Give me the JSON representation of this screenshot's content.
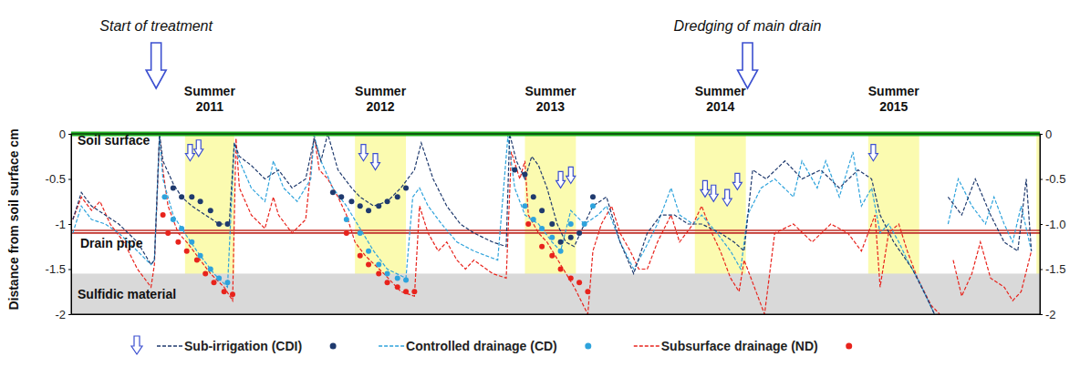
{
  "chart_data": {
    "type": "line",
    "y_label": "Distance from soil surface cm",
    "xlim": [
      2010.75,
      2016.45
    ],
    "ylim": [
      -2,
      0
    ],
    "yticks": [
      0,
      -0.5,
      -1,
      -1.5,
      -2
    ],
    "y2lim": [
      -2,
      0
    ],
    "y2ticks": [
      0,
      -0.5,
      {
        "value": -1,
        "label": "-1.0"
      },
      -1.5,
      -2
    ],
    "grid": false,
    "legend": "bottom",
    "series": [
      {
        "name": "Sub-irrigation (CDI)",
        "color": "#1f3a6e",
        "line_style": "dashed",
        "marker": "circle",
        "x": [
          2010.76,
          2010.81,
          2010.87,
          2010.95,
          2011.03,
          2011.14,
          2011.22,
          2011.24,
          2011.27,
          2011.29,
          2011.35,
          2011.4,
          2011.46,
          2011.54,
          2011.62,
          2011.68,
          2011.71,
          2011.74,
          2011.81,
          2011.89,
          2011.97,
          2012.05,
          2012.13,
          2012.18,
          2012.22,
          2012.26,
          2012.32,
          2012.4,
          2012.45,
          2012.53,
          2012.61,
          2012.69,
          2012.77,
          2012.81,
          2012.88,
          2012.96,
          2013.04,
          2013.12,
          2013.23,
          2013.31,
          2013.33,
          2013.37,
          2013.42,
          2013.46,
          2013.5,
          2013.55,
          2013.61,
          2013.66,
          2013.71,
          2013.77,
          2013.82,
          2013.9,
          2013.98,
          2014.06,
          2014.14,
          2014.22,
          2014.3,
          2014.38,
          2014.46,
          2014.57,
          2014.65,
          2014.71,
          2014.76,
          2014.84,
          2014.95,
          2015.05,
          2015.16,
          2015.27,
          2015.38,
          2015.46,
          2015.51,
          2015.59,
          2015.7,
          2015.78,
          2015.83,
          2015.88,
          2015.91,
          2015.99,
          2016.07,
          2016.16,
          2016.24,
          2016.32,
          2016.37,
          2016.4
        ],
        "values": [
          -0.95,
          -0.65,
          -0.8,
          -0.9,
          -1.0,
          -1.2,
          -1.45,
          -1.4,
          0,
          -0.3,
          -0.55,
          -0.7,
          -0.8,
          -0.9,
          -1.0,
          -1.0,
          -0.1,
          -0.25,
          -0.35,
          -0.5,
          -0.4,
          -0.6,
          -0.5,
          -0.05,
          -0.3,
          0,
          -0.4,
          -0.6,
          -0.7,
          -0.8,
          -0.75,
          -0.6,
          -0.4,
          -0.1,
          -0.5,
          -0.8,
          -1.0,
          -1.1,
          -1.2,
          -1.25,
          0,
          -0.3,
          -0.5,
          -0.25,
          -0.35,
          -0.6,
          -1.0,
          -1.2,
          -1.25,
          -1.0,
          -0.8,
          -0.7,
          -1.2,
          -1.55,
          -1.1,
          -0.9,
          -0.9,
          -1.0,
          -1.0,
          -1.1,
          -1.2,
          -1.3,
          -0.4,
          -0.5,
          -0.3,
          -0.5,
          -0.4,
          -0.6,
          -0.4,
          -0.5,
          -0.9,
          -1.2,
          -1.5,
          -1.8,
          -2.0,
          null,
          -0.7,
          -0.9,
          -0.5,
          -0.9,
          -1.2,
          -1.3,
          -0.5,
          -1.3
        ],
        "points": {
          "x": [
            2011.35,
            2011.4,
            2011.46,
            2011.51,
            2011.57,
            2011.62,
            2011.67,
            2012.29,
            2012.34,
            2012.4,
            2012.45,
            2012.5,
            2012.56,
            2012.61,
            2012.67,
            2012.72,
            2013.36,
            2013.42,
            2013.47,
            2013.52,
            2013.58,
            2013.63,
            2013.69,
            2013.74,
            2013.82
          ],
          "values": [
            -0.6,
            -0.7,
            -0.7,
            -0.75,
            -0.85,
            -1.0,
            -1.0,
            -0.65,
            -0.7,
            -0.75,
            -0.8,
            -0.85,
            -0.8,
            -0.75,
            -0.7,
            -0.6,
            -0.4,
            -0.45,
            -0.7,
            -0.85,
            -1.0,
            -1.2,
            -1.15,
            -1.1,
            -0.7
          ]
        }
      },
      {
        "name": "Controlled drainage (CD)",
        "color": "#2ea3dc",
        "line_style": "dashed",
        "marker": "circle",
        "x": [
          2010.76,
          2010.81,
          2010.87,
          2010.95,
          2011.03,
          2011.14,
          2011.22,
          2011.24,
          2011.27,
          2011.29,
          2011.35,
          2011.4,
          2011.49,
          2011.59,
          2011.67,
          2011.71,
          2011.74,
          2011.81,
          2011.89,
          2011.94,
          2012.0,
          2012.08,
          2012.16,
          2012.18,
          2012.22,
          2012.29,
          2012.37,
          2012.45,
          2012.53,
          2012.61,
          2012.72,
          2012.76,
          2012.8,
          2012.85,
          2012.93,
          2013.02,
          2013.12,
          2013.26,
          2013.32,
          2013.36,
          2013.42,
          2013.5,
          2013.58,
          2013.63,
          2013.69,
          2013.77,
          2013.85,
          2013.9,
          2013.98,
          2014.06,
          2014.12,
          2014.2,
          2014.28,
          2014.33,
          2014.41,
          2014.46,
          2014.55,
          2014.63,
          2014.69,
          2014.73,
          2014.81,
          2014.89,
          2015.0,
          2015.05,
          2015.14,
          2015.19,
          2015.27,
          2015.35,
          2015.4,
          2015.46,
          2015.51,
          2015.56,
          2015.62,
          2015.67,
          2015.73,
          2015.78,
          2015.83,
          2015.88,
          2015.91,
          2015.97,
          2016.05,
          2016.13,
          2016.18,
          2016.24,
          2016.29,
          2016.34,
          2016.4
        ],
        "values": [
          -1.1,
          -0.8,
          -0.95,
          -1.0,
          -1.1,
          -1.3,
          -1.45,
          -1.4,
          -0.02,
          -0.5,
          -0.9,
          -1.05,
          -1.3,
          -1.55,
          -1.7,
          -0.1,
          -0.3,
          -0.6,
          -0.75,
          -0.3,
          -0.6,
          -0.75,
          -0.5,
          -0.02,
          -0.3,
          -0.6,
          -0.8,
          -1.05,
          -1.3,
          -1.5,
          -1.6,
          -0.7,
          -0.6,
          -0.8,
          -1.0,
          -1.2,
          -1.3,
          -1.4,
          -0.02,
          -0.6,
          -0.9,
          -1.0,
          -1.2,
          -1.3,
          -0.85,
          -1.0,
          -0.9,
          -0.8,
          -1.2,
          -1.5,
          -1.3,
          -1.0,
          -0.6,
          -0.9,
          -1.0,
          -0.9,
          -1.1,
          -1.3,
          -1.5,
          -0.9,
          -0.6,
          -0.5,
          -0.7,
          -0.3,
          -0.6,
          -0.3,
          -0.7,
          -0.2,
          -0.8,
          -0.6,
          -1.1,
          -1.0,
          -1.2,
          -1.4,
          -1.6,
          -1.8,
          -2.0,
          null,
          -1.0,
          -0.5,
          -0.8,
          -1.0,
          -0.7,
          -1.0,
          -1.2,
          -0.8,
          -1.3
        ],
        "points": {
          "x": [
            2011.3,
            2011.35,
            2011.4,
            2011.46,
            2011.51,
            2011.57,
            2011.62,
            2011.67,
            2012.37,
            2012.45,
            2012.5,
            2012.56,
            2012.61,
            2012.67,
            2012.72,
            2013.42,
            2013.47,
            2013.52,
            2013.58,
            2013.63,
            2013.69,
            2013.77,
            2013.82
          ],
          "values": [
            -0.7,
            -0.95,
            -1.05,
            -1.2,
            -1.35,
            -1.5,
            -1.6,
            -1.65,
            -0.95,
            -1.1,
            -1.3,
            -1.45,
            -1.55,
            -1.6,
            -1.62,
            -0.8,
            -0.95,
            -1.05,
            -1.15,
            -1.3,
            -1.0,
            -1.0,
            -0.8
          ]
        }
      },
      {
        "name": "Subsurface drainage (ND)",
        "color": "#e8231c",
        "line_style": "dashed",
        "marker": "circle",
        "x": [
          2010.76,
          2010.81,
          2010.87,
          2010.92,
          2010.98,
          2011.06,
          2011.14,
          2011.22,
          2011.24,
          2011.27,
          2011.29,
          2011.32,
          2011.38,
          2011.43,
          2011.49,
          2011.57,
          2011.65,
          2011.7,
          2011.72,
          2011.74,
          2011.81,
          2011.89,
          2011.94,
          2011.97,
          2012.05,
          2012.13,
          2012.18,
          2012.21,
          2012.26,
          2012.32,
          2012.37,
          2012.42,
          2012.48,
          2012.59,
          2012.69,
          2012.77,
          2012.8,
          2012.85,
          2012.91,
          2012.96,
          2013.02,
          2013.07,
          2013.12,
          2013.23,
          2013.31,
          2013.34,
          2013.39,
          2013.42,
          2013.44,
          2013.5,
          2013.55,
          2013.63,
          2013.71,
          2013.79,
          2013.82,
          2013.87,
          2013.93,
          2013.98,
          2014.04,
          2014.09,
          2014.14,
          2014.2,
          2014.28,
          2014.33,
          2014.41,
          2014.46,
          2014.52,
          2014.57,
          2014.63,
          2014.68,
          2014.71,
          2014.79,
          2014.83,
          2014.89,
          2015.0,
          2015.11,
          2015.22,
          2015.32,
          2015.4,
          2015.48,
          2015.51,
          2015.56,
          2015.62,
          2015.67,
          2015.73,
          2015.81,
          2015.86,
          2015.88,
          2015.94,
          2015.99,
          2016.05,
          2016.1,
          2016.16,
          2016.24,
          2016.29,
          2016.34,
          2016.4
        ],
        "values": [
          -0.95,
          -0.7,
          -0.85,
          -0.75,
          -1.0,
          -1.2,
          -1.5,
          -1.7,
          -1.45,
          -0.02,
          -0.4,
          -0.8,
          -1.1,
          -1.2,
          -1.35,
          -1.55,
          -1.7,
          -1.85,
          -0.05,
          -0.6,
          -0.9,
          -1.05,
          -0.7,
          -0.9,
          -1.1,
          -0.95,
          -0.02,
          -0.4,
          -0.5,
          -0.7,
          -0.9,
          -1.2,
          -1.35,
          -1.55,
          -1.75,
          -1.8,
          -0.8,
          -1.1,
          -1.3,
          -1.2,
          -1.4,
          -1.5,
          -1.4,
          -1.55,
          -1.6,
          -0.2,
          -0.5,
          -0.3,
          -0.9,
          -1.1,
          -1.2,
          -1.45,
          -1.7,
          -2.0,
          -1.3,
          -1.0,
          -0.8,
          -1.1,
          -1.3,
          -1.5,
          -1.5,
          -1.2,
          -0.9,
          -1.2,
          -1.0,
          -0.8,
          -1.1,
          -1.3,
          -1.6,
          -1.75,
          -1.4,
          -1.8,
          -2.0,
          -1.1,
          -1.0,
          -1.2,
          -1.0,
          -1.1,
          -1.3,
          -0.9,
          -1.7,
          -1.1,
          -1.0,
          -1.3,
          -1.6,
          -1.9,
          -2.0,
          null,
          -1.4,
          -1.8,
          -1.55,
          -1.2,
          -1.6,
          -1.7,
          -1.85,
          -1.75,
          -1.3
        ],
        "points": {
          "x": [
            2011.29,
            2011.32,
            2011.38,
            2011.43,
            2011.49,
            2011.54,
            2011.59,
            2011.65,
            2011.7,
            2012.37,
            2012.45,
            2012.5,
            2012.56,
            2012.61,
            2012.67,
            2012.72,
            2012.77,
            2013.44,
            2013.52,
            2013.58,
            2013.63,
            2013.69,
            2013.74,
            2013.79
          ],
          "values": [
            -0.9,
            -1.1,
            -1.2,
            -1.3,
            -1.4,
            -1.55,
            -1.65,
            -1.75,
            -1.78,
            -1.1,
            -1.35,
            -1.45,
            -1.55,
            -1.65,
            -1.7,
            -1.75,
            -1.75,
            -1.0,
            -1.25,
            -1.35,
            -1.5,
            -1.6,
            -1.65,
            -1.75
          ]
        }
      }
    ],
    "summers": [
      {
        "label": "Summer 2011",
        "start": 2011.42,
        "end": 2011.71
      },
      {
        "label": "Summer 2012",
        "start": 2012.42,
        "end": 2012.72
      },
      {
        "label": "Summer 2013",
        "start": 2013.42,
        "end": 2013.72
      },
      {
        "label": "Summer 2014",
        "start": 2014.42,
        "end": 2014.72
      },
      {
        "label": "Summer 2015",
        "start": 2015.44,
        "end": 2015.74
      },
      {
        "start": 2016.43,
        "end": 2016.72
      }
    ],
    "annotations": [
      {
        "text": "Start of treatment",
        "x": 2011.25
      },
      {
        "text": "Dredging of main drain",
        "x": 2014.73
      }
    ],
    "event_arrows": {
      "x": [
        2011.45,
        2011.5,
        2012.47,
        2012.54,
        2013.63,
        2013.69,
        2014.48,
        2014.53,
        2014.61,
        2014.67,
        2015.47
      ],
      "values": [
        -0.3,
        -0.25,
        -0.3,
        -0.4,
        -0.6,
        -0.55,
        -0.7,
        -0.75,
        -0.8,
        -0.62,
        -0.3
      ]
    },
    "soil_surface": {
      "label": "Soil surface",
      "value": 0
    },
    "drain_pipe": {
      "label": "Drain pipe",
      "values": [
        -1.07,
        -1.1
      ]
    },
    "sulfidic_material": {
      "label": "Sulfidic material",
      "from": -1.55,
      "to": -2
    }
  }
}
